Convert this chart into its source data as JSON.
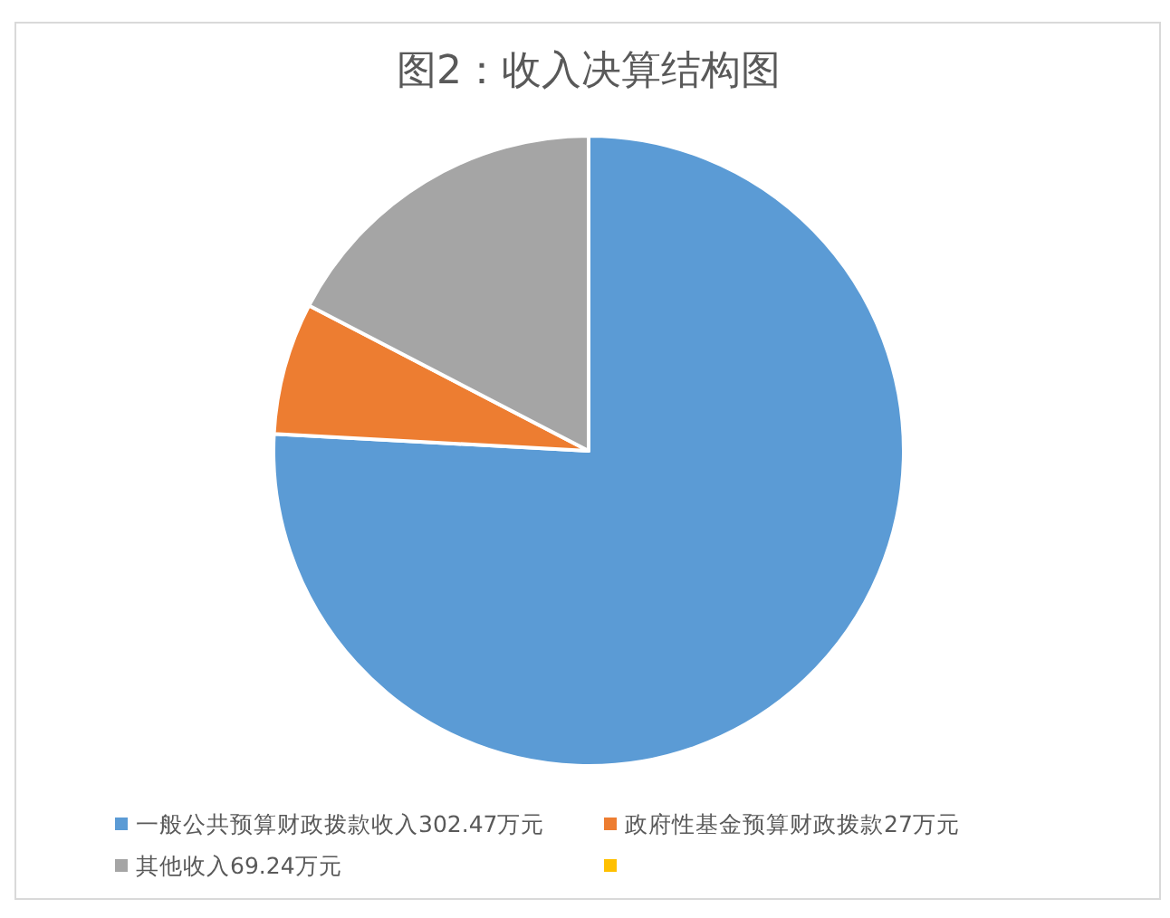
{
  "chart_data": {
    "type": "pie",
    "title": "图2：收入决算结构图",
    "categories": [
      "一般公共预算财政拨款收入302.47万元",
      "政府性基金预算财政拨款27万元",
      "其他收入69.24万元",
      null
    ],
    "values": [
      302.47,
      27,
      69.24,
      0
    ],
    "colors": [
      "#5b9bd5",
      "#ed7d31",
      "#a5a5a5",
      "#ffc000"
    ],
    "legend": "bottom"
  }
}
